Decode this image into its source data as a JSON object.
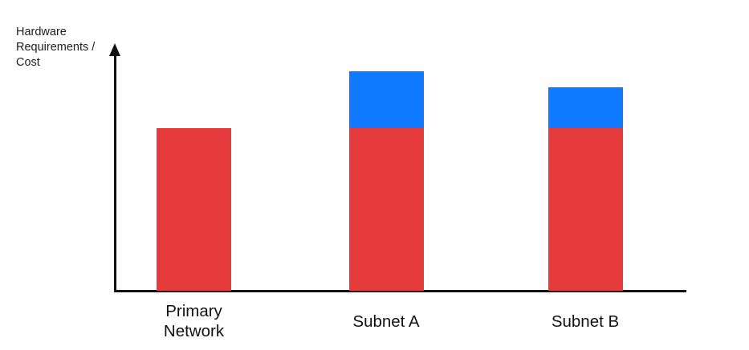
{
  "chart": {
    "y_axis_label": "Hardware\nRequirements /\nCost"
  },
  "chart_data": {
    "type": "bar",
    "subtype": "stacked",
    "title": "",
    "xlabel": "",
    "ylabel": "Hardware Requirements / Cost",
    "categories": [
      "Primary Network",
      "Subnet A",
      "Subnet B"
    ],
    "series": [
      {
        "name": "red-base-segment",
        "color_key": "red",
        "values": [
          100,
          100,
          100
        ]
      },
      {
        "name": "blue-additional-segment",
        "color_key": "blue",
        "values": [
          0,
          35,
          25
        ]
      }
    ],
    "ylim": [
      0,
      150
    ],
    "y_axis_ticks": [],
    "gridlines": false,
    "legend": "none",
    "value_scale": "relative (axis has no numeric ticks; red base = 100)",
    "colors": {
      "red": "#E53B3D",
      "blue": "#0F7AFF",
      "axis": "#111111",
      "text": "#1D1D1F"
    }
  }
}
